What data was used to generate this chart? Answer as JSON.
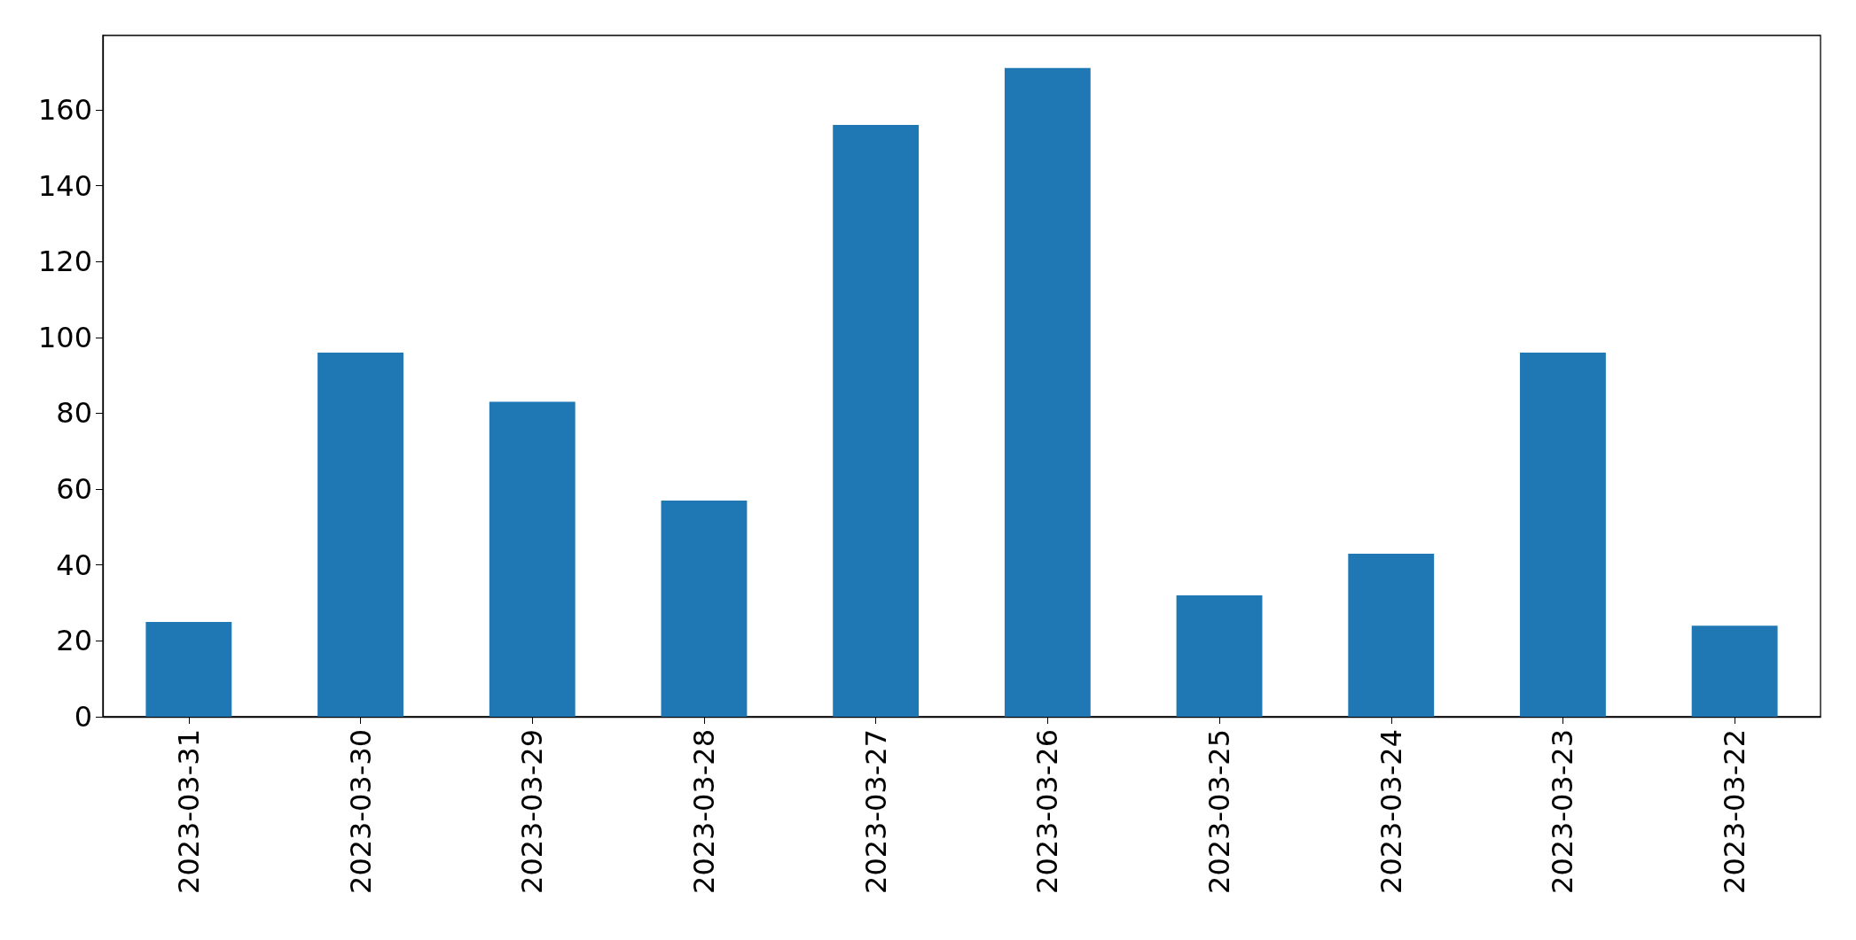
{
  "chart_data": {
    "type": "bar",
    "categories": [
      "2023-03-31",
      "2023-03-30",
      "2023-03-29",
      "2023-03-28",
      "2023-03-27",
      "2023-03-26",
      "2023-03-25",
      "2023-03-24",
      "2023-03-23",
      "2023-03-22"
    ],
    "values": [
      25,
      96,
      83,
      57,
      156,
      171,
      32,
      43,
      96,
      24
    ],
    "color": "#1f77b4",
    "ylim": [
      0,
      179.6
    ],
    "yticks": [
      0,
      20,
      40,
      60,
      80,
      100,
      120,
      140,
      160
    ],
    "grid": false
  }
}
